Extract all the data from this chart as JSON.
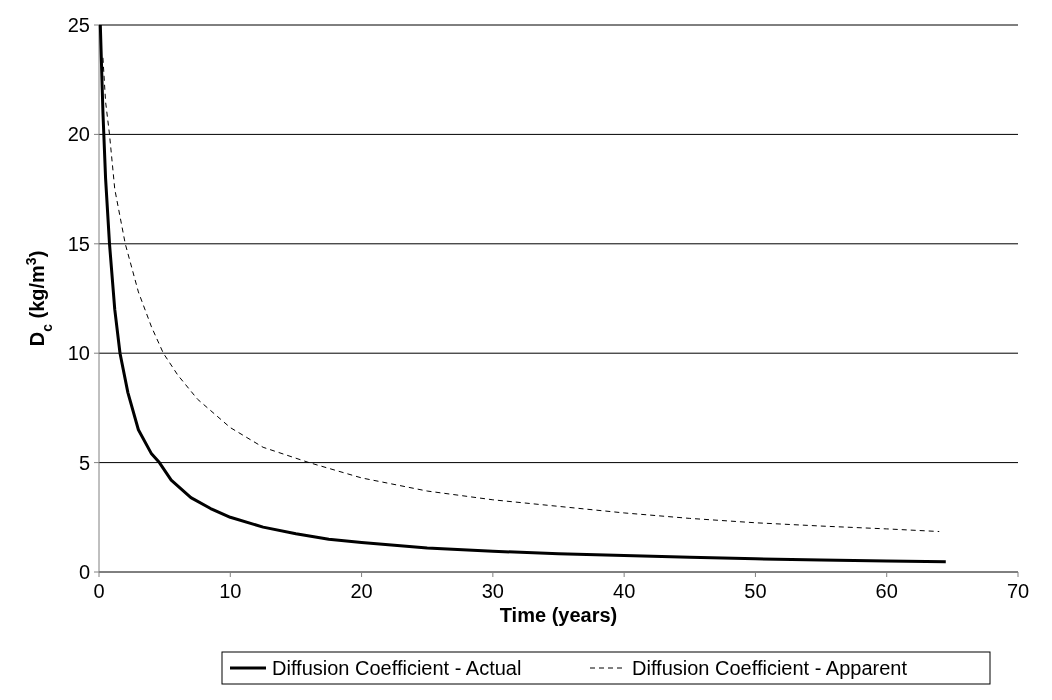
{
  "chart_data": {
    "type": "line",
    "xlabel": "Time (years)",
    "ylabel": "D$_{c}$ (kg/m$^{3}$)",
    "xlim": [
      0,
      70
    ],
    "xticks": [
      0,
      10,
      20,
      30,
      40,
      50,
      60,
      70
    ],
    "ylim": [
      0,
      25
    ],
    "yticks": [
      0,
      5,
      10,
      15,
      20,
      25
    ],
    "grid": "y",
    "legend": "bottom",
    "series": [
      {
        "name": "Diffusion Coefficient - Actual",
        "color": "#000000",
        "line_style": "solid",
        "x": [
          0.1,
          0.3,
          0.5,
          0.8,
          1.2,
          1.6,
          2.2,
          3,
          4,
          4.6,
          5.5,
          7,
          8.5,
          10,
          12.5,
          15,
          17.5,
          20,
          25,
          30,
          35,
          40,
          45,
          50,
          55,
          60,
          64.5
        ],
        "values": [
          25,
          21,
          18,
          15,
          12,
          10,
          8.2,
          6.5,
          5.4,
          5,
          4.2,
          3.4,
          2.9,
          2.5,
          2.05,
          1.75,
          1.5,
          1.35,
          1.1,
          0.95,
          0.83,
          0.75,
          0.67,
          0.6,
          0.55,
          0.5,
          0.47
        ]
      },
      {
        "name": "Diffusion Coefficient - Apparent",
        "color": "#000000",
        "line_style": "dashed",
        "x": [
          0.3,
          0.5,
          0.8,
          1.2,
          2,
          3,
          4,
          4.9,
          6,
          7.5,
          10,
          12.5,
          16,
          20,
          25,
          30,
          35,
          40,
          45,
          50,
          55,
          60,
          64
        ],
        "values": [
          23.5,
          21.5,
          20,
          17.5,
          15,
          12.8,
          11.2,
          10,
          9,
          7.9,
          6.6,
          5.7,
          5,
          4.3,
          3.7,
          3.3,
          3,
          2.7,
          2.45,
          2.25,
          2.1,
          1.97,
          1.85
        ]
      }
    ]
  }
}
